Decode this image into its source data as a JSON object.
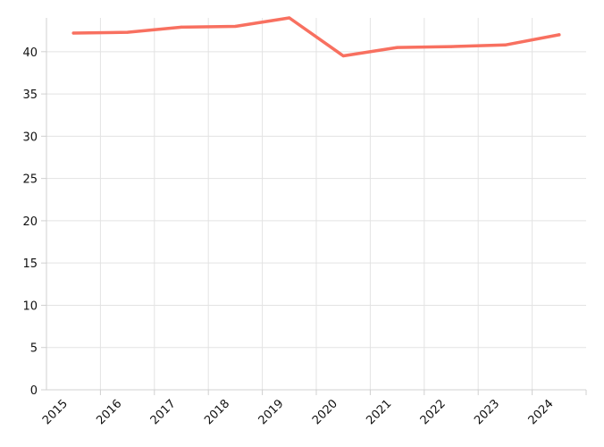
{
  "chart_data": {
    "type": "line",
    "title": "",
    "xlabel": "",
    "ylabel": "",
    "x": [
      "2015",
      "2016",
      "2017",
      "2018",
      "2019",
      "2020",
      "2021",
      "2022",
      "2023",
      "2024"
    ],
    "series": [
      {
        "values": [
          42.2,
          42.3,
          42.9,
          43.0,
          44.0,
          39.5,
          40.5,
          40.6,
          40.8,
          42.0
        ],
        "color": "#f87060"
      }
    ],
    "ylim": [
      0,
      44
    ],
    "yticks": [
      0,
      5,
      10,
      15,
      20,
      25,
      30,
      35,
      40
    ],
    "grid": true,
    "legend": "none"
  }
}
